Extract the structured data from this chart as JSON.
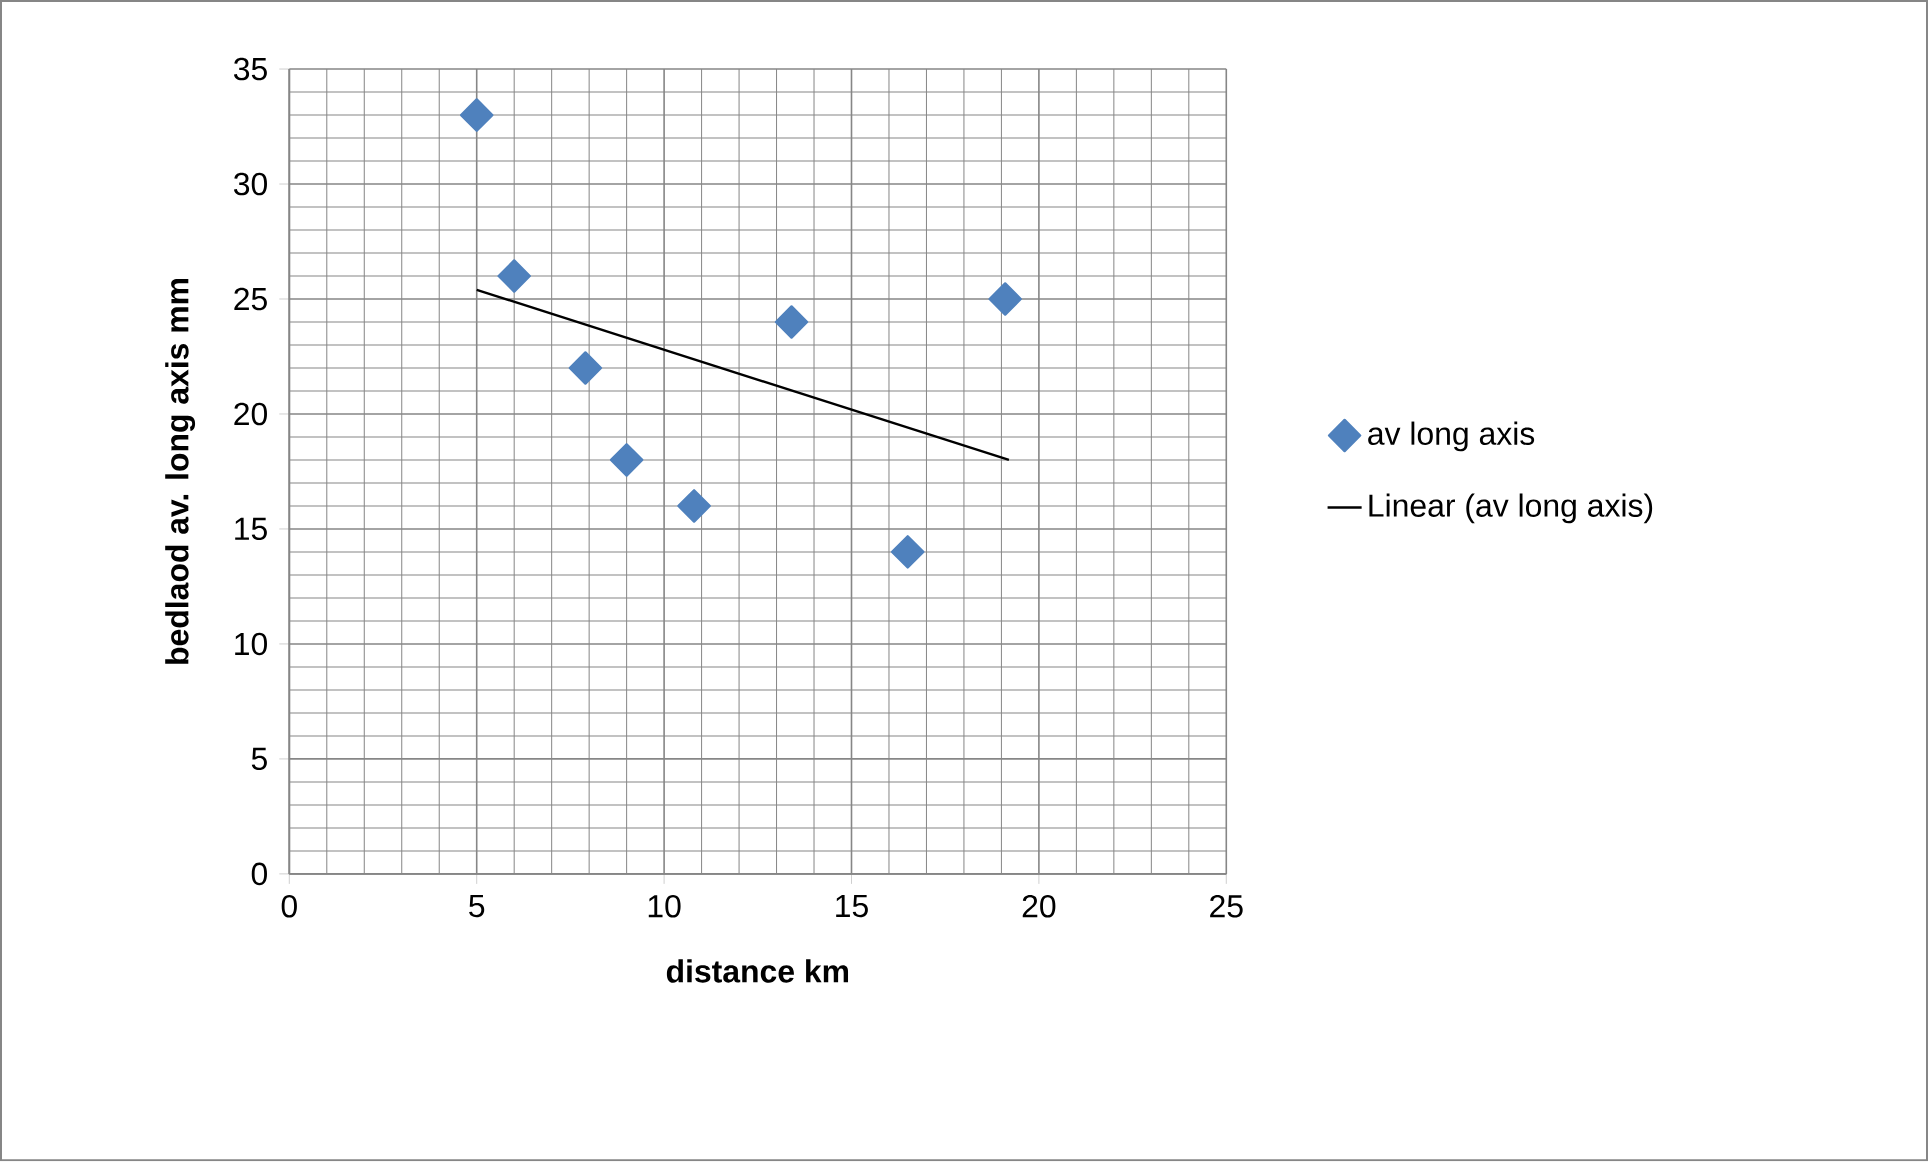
{
  "chart_data": {
    "type": "scatter",
    "xlabel": "distance  km",
    "ylabel": "bedlaod av. long axis  mm",
    "series": [
      {
        "name": "av long axis",
        "color": "#4f81bd",
        "marker": "diamond",
        "x": [
          5,
          6,
          7.9,
          9,
          10.8,
          13.4,
          16.5,
          19.1
        ],
        "values": [
          33,
          26,
          22,
          18,
          16,
          24,
          14,
          25
        ]
      },
      {
        "name": "Linear (av long axis)",
        "type": "line",
        "color": "#000000",
        "marker": "none",
        "x": [
          5,
          19.2
        ],
        "values": [
          25.4,
          18.0
        ]
      }
    ],
    "xlim": [
      0,
      25
    ],
    "ylim": [
      0,
      35
    ],
    "xticks": [
      0,
      5,
      10,
      15,
      20,
      25
    ],
    "yticks": [
      0,
      5,
      10,
      15,
      20,
      25,
      30,
      35
    ],
    "grid": true,
    "legend": "right"
  }
}
